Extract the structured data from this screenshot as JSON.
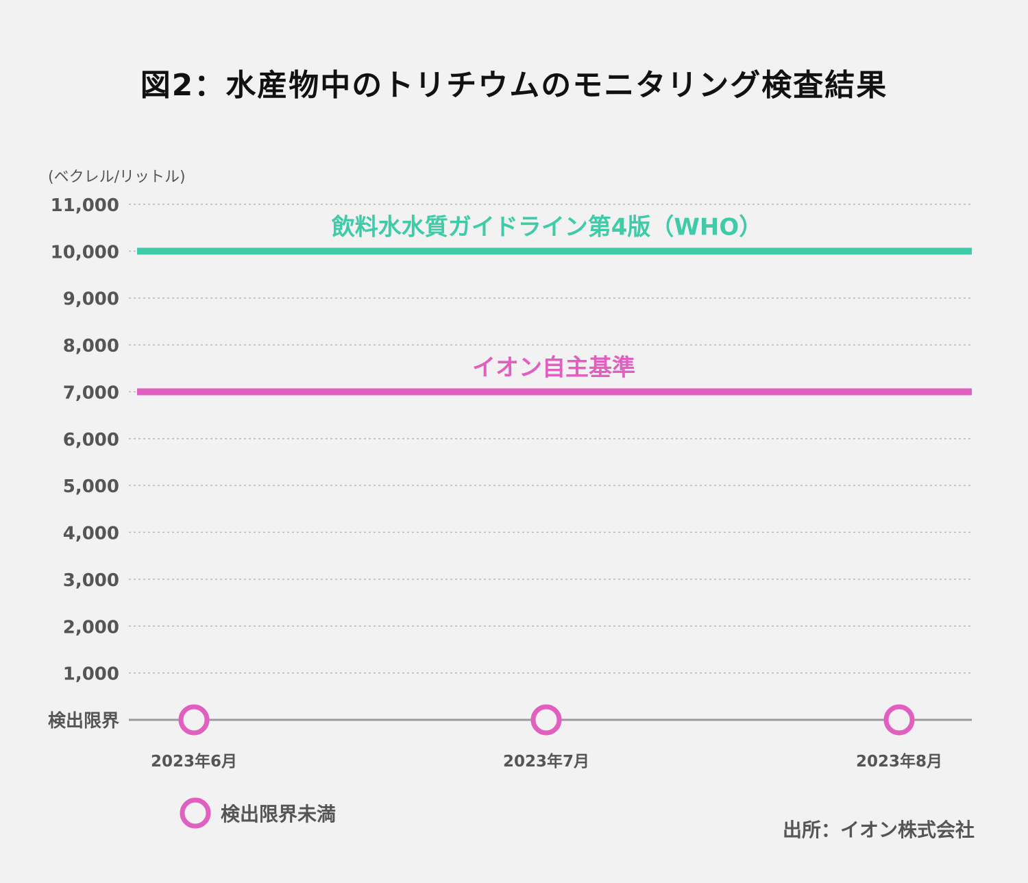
{
  "title": "図2：水産物中のトリチウムのモニタリング検査結果",
  "source": "出所：イオン株式会社",
  "colors": {
    "who": "#3fcba8",
    "aeon": "#e05fbf",
    "grid": "#b8b8b8",
    "baseline": "#9a9a9a",
    "tick_text": "#555555"
  },
  "chart_data": {
    "type": "scatter",
    "unit_label": "(ベクレル/リットル)",
    "yticks": [
      {
        "value": 11000,
        "label": "11,000"
      },
      {
        "value": 10000,
        "label": "10,000"
      },
      {
        "value": 9000,
        "label": "9,000"
      },
      {
        "value": 8000,
        "label": "8,000"
      },
      {
        "value": 7000,
        "label": "7,000"
      },
      {
        "value": 6000,
        "label": "6,000"
      },
      {
        "value": 5000,
        "label": "5,000"
      },
      {
        "value": 4000,
        "label": "4,000"
      },
      {
        "value": 3000,
        "label": "3,000"
      },
      {
        "value": 2000,
        "label": "2,000"
      },
      {
        "value": 1000,
        "label": "1,000"
      },
      {
        "value": 0,
        "label": "検出限界"
      }
    ],
    "ylim": [
      0,
      11000
    ],
    "categories": [
      "2023年6月",
      "2023年7月",
      "2023年8月"
    ],
    "series": [
      {
        "name": "検出限界未満",
        "values": [
          0,
          0,
          0
        ]
      }
    ],
    "reference_lines": [
      {
        "label": "飲料水水質ガイドライン第4版（WHO）",
        "value": 10000,
        "color": "#3fcba8"
      },
      {
        "label": "イオン自主基準",
        "value": 7000,
        "color": "#e05fbf"
      }
    ],
    "grid": true,
    "legend_position": "bottom-left"
  }
}
